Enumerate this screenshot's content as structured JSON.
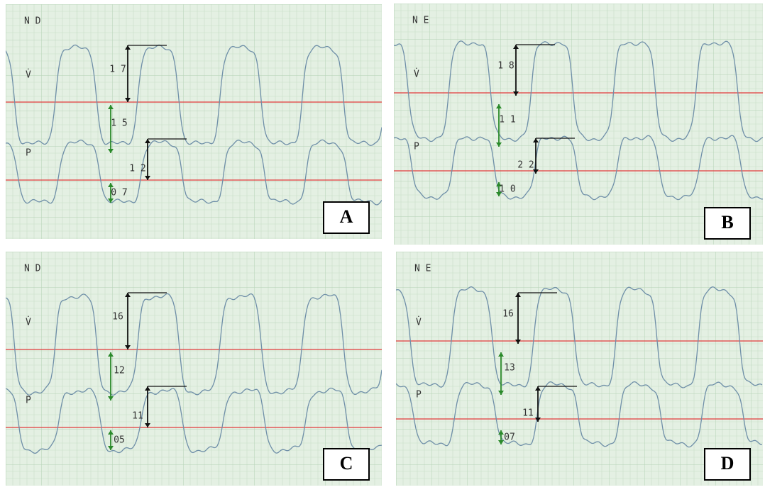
{
  "panels": [
    {
      "label": "A",
      "mode": "N D",
      "flow_label": "V̇",
      "pressure_label": "P",
      "measurements": [
        "1 7",
        "1 5",
        "1 2",
        "0 7"
      ]
    },
    {
      "label": "B",
      "mode": "N E",
      "flow_label": "V̇",
      "pressure_label": "P",
      "measurements": [
        "1 8",
        "1 1",
        "2 2",
        "1 0"
      ]
    },
    {
      "label": "C",
      "mode": "N D",
      "flow_label": "V̇",
      "pressure_label": "P",
      "measurements": [
        "16",
        "12",
        "11",
        "05"
      ]
    },
    {
      "label": "D",
      "mode": "N E",
      "flow_label": "V̇",
      "pressure_label": "P",
      "measurements": [
        "16",
        "13",
        "11",
        "07"
      ]
    }
  ]
}
